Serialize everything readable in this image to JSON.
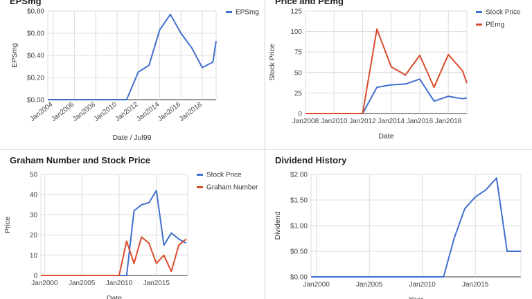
{
  "charts": [
    {
      "id": "c1",
      "title": "EPSmg",
      "type": "line",
      "xlabel": "Date / Jul99",
      "ylabel": "EPSmg",
      "ylim": [
        0,
        0.8
      ],
      "yticks": [
        0,
        0.2,
        0.4,
        0.6,
        0.8
      ],
      "yticklabels": [
        "$0.00",
        "$0.20",
        "$0.40",
        "$0.60",
        "$0.80"
      ],
      "xlim": [
        2003.5,
        2019.3
      ],
      "xticks": [
        2004,
        2006,
        2008,
        2010,
        2012,
        2014,
        2016,
        2018
      ],
      "xticklabels": [
        "Jan2004",
        "Jan2006",
        "Jan2008",
        "Jan2010",
        "Jan2012",
        "Jan2014",
        "Jan2016",
        "Jan2018"
      ],
      "xlabels_rotated": true,
      "legend_position": "right",
      "series": [
        {
          "name": "EPSmg",
          "color": "#3f6fcf",
          "x": [
            2003.5,
            2010.9,
            2012.0,
            2013.0,
            2014.0,
            2015.0,
            2016.0,
            2017.0,
            2018.0,
            2019.0,
            2019.3
          ],
          "y": [
            0,
            0,
            0.25,
            0.31,
            0.63,
            0.77,
            0.6,
            0.47,
            0.29,
            0.34,
            0.53
          ]
        }
      ]
    },
    {
      "id": "c2",
      "title": "Price and PEmg",
      "type": "line",
      "xlabel": "Date",
      "ylabel": "Stock Price",
      "ylim": [
        0,
        125
      ],
      "yticks": [
        0,
        25,
        50,
        75,
        100,
        125
      ],
      "yticklabels": [
        "0",
        "25",
        "50",
        "75",
        "100",
        "125"
      ],
      "xlim": [
        2008,
        2019.3
      ],
      "xticks": [
        2008,
        2010,
        2012,
        2014,
        2016,
        2018
      ],
      "xticklabels": [
        "Jan2008",
        "Jan2010",
        "Jan2012",
        "Jan2014",
        "Jan2016",
        "Jan2018"
      ],
      "xlabels_rotated": false,
      "legend_position": "right",
      "series": [
        {
          "name": "Stock Price",
          "color": "#3f6fcf",
          "x": [
            2008,
            2012.0,
            2013.0,
            2014.0,
            2015.0,
            2016.0,
            2017.0,
            2018.0,
            2019.0,
            2019.3
          ],
          "y": [
            0,
            0,
            32,
            35,
            36,
            42,
            15,
            21,
            18,
            19
          ]
        },
        {
          "name": "PEmg",
          "color": "#db4a2b",
          "x": [
            2008,
            2012.0,
            2013.0,
            2014.0,
            2015.0,
            2016.0,
            2017.0,
            2018.0,
            2019.0,
            2019.3
          ],
          "y": [
            0,
            0,
            103,
            57,
            47,
            71,
            32,
            72,
            52,
            37
          ]
        }
      ]
    },
    {
      "id": "c3",
      "title": "Graham Number and Stock Price",
      "type": "line",
      "xlabel": "Date",
      "ylabel": "Price",
      "ylim": [
        0,
        50
      ],
      "yticks": [
        0,
        10,
        20,
        30,
        40,
        50
      ],
      "yticklabels": [
        "0",
        "10",
        "20",
        "30",
        "40",
        "50"
      ],
      "xlim": [
        1999.5,
        2019.2
      ],
      "xticks": [
        2000,
        2005,
        2010,
        2015
      ],
      "xticklabels": [
        "Jan2000",
        "Jan2005",
        "Jan2010",
        "Jan2015"
      ],
      "xlabels_rotated": false,
      "legend_position": "right",
      "series": [
        {
          "name": "Stock Price",
          "color": "#3f6fcf",
          "x": [
            1999.5,
            2011.0,
            2012.0,
            2013.0,
            2014.0,
            2015.0,
            2016.0,
            2017.0,
            2018.0,
            2019.0
          ],
          "y": [
            0,
            0,
            32,
            35,
            36,
            42,
            15,
            21,
            18,
            16
          ]
        },
        {
          "name": "Graham Number",
          "color": "#db4a2b",
          "x": [
            1999.5,
            2010.0,
            2011.0,
            2012.0,
            2013.0,
            2014.0,
            2015.0,
            2016.0,
            2017.0,
            2018.0,
            2019.0
          ],
          "y": [
            0,
            0,
            17,
            6,
            19,
            16,
            6,
            10,
            2,
            15,
            18
          ]
        }
      ]
    },
    {
      "id": "c4",
      "title": "Dividend History",
      "type": "line",
      "xlabel": "Year",
      "ylabel": "Dividend",
      "ylim": [
        0,
        2
      ],
      "yticks": [
        0,
        0.5,
        1,
        1.5,
        2
      ],
      "yticklabels": [
        "$0.00",
        "$0.50",
        "$1.00",
        "$1.50",
        "$2.00"
      ],
      "xlim": [
        1999.5,
        2019.3
      ],
      "xticks": [
        2000,
        2005,
        2010,
        2015
      ],
      "xticklabels": [
        "Jan2000",
        "Jan2005",
        "Jan2010",
        "Jan2015"
      ],
      "xlabels_rotated": false,
      "legend_position": "none",
      "series": [
        {
          "name": "",
          "color": "#3f6fcf",
          "x": [
            1999.5,
            2012.0,
            2013.0,
            2014.0,
            2015.0,
            2016.0,
            2017.0,
            2018.0,
            2019.0,
            2019.3
          ],
          "y": [
            0,
            0,
            0.75,
            1.33,
            1.56,
            1.7,
            1.93,
            0.5,
            0.5,
            0.5
          ]
        }
      ]
    }
  ]
}
